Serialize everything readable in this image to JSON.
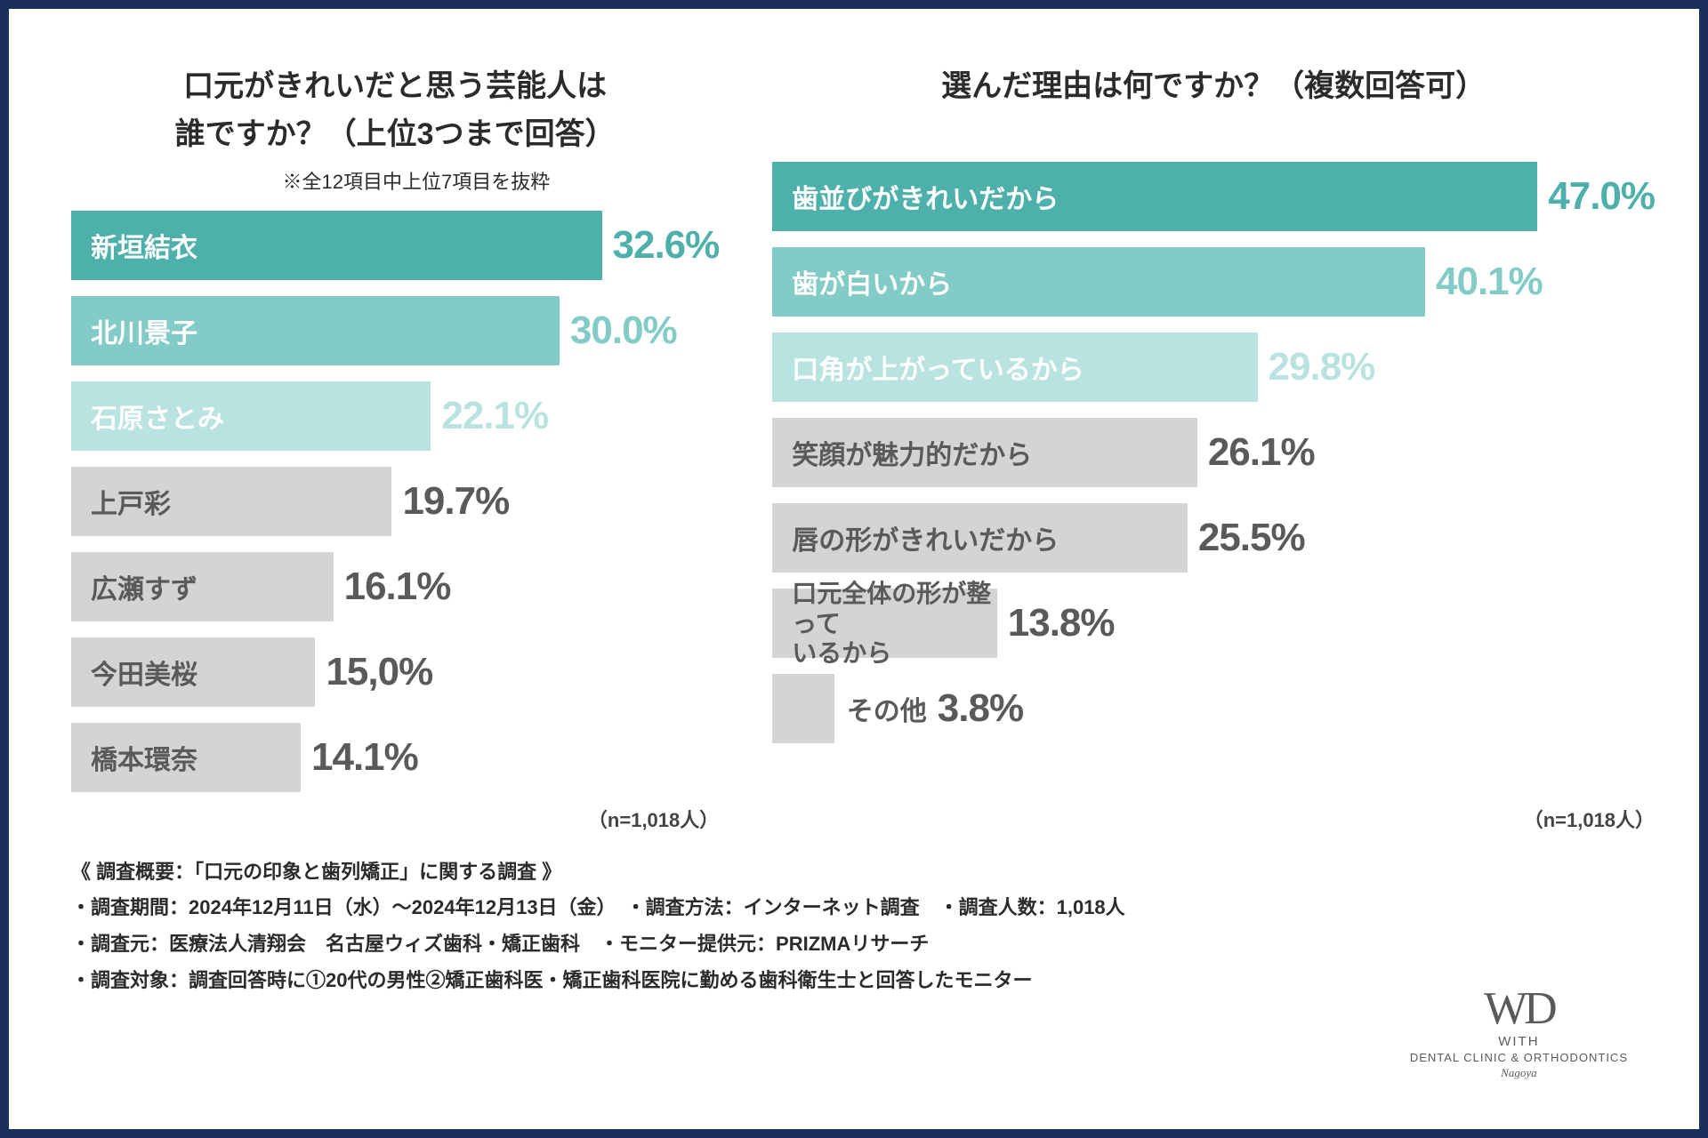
{
  "colors": {
    "teal1": "#4eb0ab",
    "teal2": "#82cbc7",
    "teal3": "#b9e3e0",
    "gray_bar": "#d4d4d4",
    "gray_text": "#5a5a5a",
    "white": "#ffffff"
  },
  "left_chart": {
    "title": "口元がきれいだと思う芸能人は\n誰ですか？（上位3つまで回答）",
    "note": "※全12項目中上位7項目を抜粋",
    "max_pct": 47.0,
    "sample": "（n=1,018人）",
    "bars": [
      {
        "label": "新垣結衣",
        "pct": 32.6,
        "bar_color": "teal1",
        "label_color": "white",
        "pct_color": "teal1"
      },
      {
        "label": "北川景子",
        "pct": 30.0,
        "bar_color": "teal2",
        "label_color": "white",
        "pct_color": "teal2"
      },
      {
        "label": "石原さとみ",
        "pct": 22.1,
        "bar_color": "teal3",
        "label_color": "white",
        "pct_color": "teal3"
      },
      {
        "label": "上戸彩",
        "pct": 19.7,
        "bar_color": "gray_bar",
        "label_color": "gray_text",
        "pct_color": "gray_text"
      },
      {
        "label": "広瀬すず",
        "pct": 16.1,
        "bar_color": "gray_bar",
        "label_color": "gray_text",
        "pct_color": "gray_text"
      },
      {
        "label": "今田美桜",
        "pct": 15.0,
        "bar_color": "gray_bar",
        "label_color": "gray_text",
        "pct_color": "gray_text",
        "pct_display": "15,0%"
      },
      {
        "label": "橋本環奈",
        "pct": 14.1,
        "bar_color": "gray_bar",
        "label_color": "gray_text",
        "pct_color": "gray_text"
      }
    ]
  },
  "right_chart": {
    "title": "選んだ理由は何ですか？（複数回答可）",
    "max_pct": 47.0,
    "sample": "（n=1,018人）",
    "bars": [
      {
        "label": "歯並びがきれいだから",
        "pct": 47.0,
        "bar_color": "teal1",
        "label_color": "white",
        "pct_color": "teal1"
      },
      {
        "label": "歯が白いから",
        "pct": 40.1,
        "bar_color": "teal2",
        "label_color": "white",
        "pct_color": "teal2"
      },
      {
        "label": "口角が上がっているから",
        "pct": 29.8,
        "bar_color": "teal3",
        "label_color": "white",
        "pct_color": "teal3"
      },
      {
        "label": "笑顔が魅力的だから",
        "pct": 26.1,
        "bar_color": "gray_bar",
        "label_color": "gray_text",
        "pct_color": "gray_text"
      },
      {
        "label": "唇の形がきれいだから",
        "pct": 25.5,
        "bar_color": "gray_bar",
        "label_color": "gray_text",
        "pct_color": "gray_text"
      },
      {
        "label": "口元全体の形が整って\nいるから",
        "pct": 13.8,
        "bar_color": "gray_bar",
        "label_color": "gray_text",
        "pct_color": "gray_text",
        "two_line": true
      },
      {
        "label": "その他",
        "pct": 3.8,
        "bar_color": "gray_bar",
        "label_color": "gray_text",
        "pct_color": "gray_text"
      }
    ]
  },
  "footer": {
    "overview": "《 調査概要：「口元の印象と歯列矯正」に関する調査 》",
    "row1": [
      "・調査期間：2024年12月11日（水）～2024年12月13日（金）",
      "・調査方法：インターネット調査",
      "・調査人数：1,018人"
    ],
    "row2": [
      "・調査元：医療法人清翔会　名古屋ウィズ歯科・矯正歯科",
      "・モニター提供元：PRIZMAリサーチ"
    ],
    "row3": [
      "・調査対象：調査回答時に①20代の男性②矯正歯科医・矯正歯科医院に勤める歯科衛生士と回答したモニター"
    ]
  },
  "logo": {
    "mark": "WD",
    "with": "WITH",
    "sub": "DENTAL CLINIC & ORTHODONTICS",
    "city": "Nagoya"
  }
}
